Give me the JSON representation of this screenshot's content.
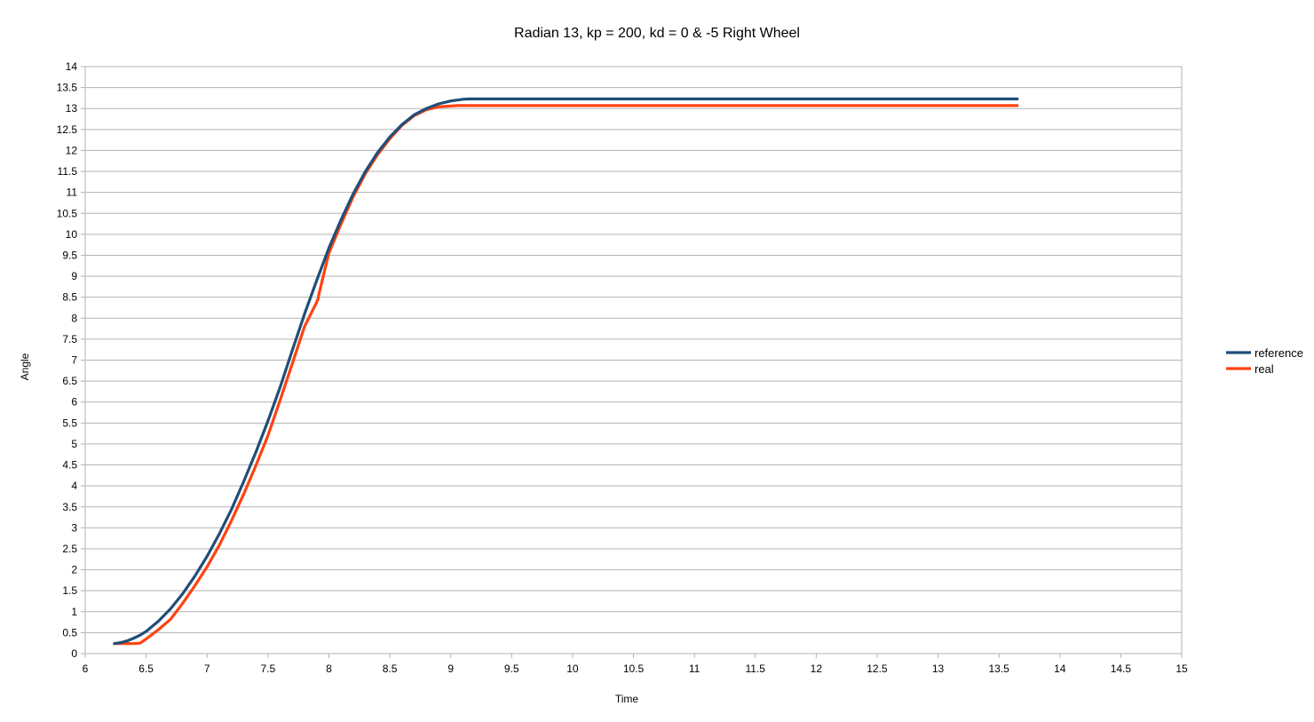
{
  "chart_data": {
    "type": "line",
    "title": "Radian 13, kp = 200, kd = 0 & -5 Right Wheel",
    "xlabel": "Time",
    "ylabel": "Angle",
    "xlim": [
      6,
      15
    ],
    "ylim": [
      0,
      14
    ],
    "x_ticks": [
      "6",
      "6.5",
      "7",
      "7.5",
      "8",
      "8.5",
      "9",
      "9.5",
      "10",
      "10.5",
      "11",
      "11.5",
      "12",
      "12.5",
      "13",
      "13.5",
      "14",
      "14.5",
      "15"
    ],
    "y_ticks": [
      "0",
      "0.5",
      "1",
      "1.5",
      "2",
      "2.5",
      "3",
      "3.5",
      "4",
      "4.5",
      "5",
      "5.5",
      "6",
      "6.5",
      "7",
      "7.5",
      "8",
      "8.5",
      "9",
      "9.5",
      "10",
      "10.5",
      "11",
      "11.5",
      "12",
      "12.5",
      "13",
      "13.5",
      "14"
    ],
    "grid": "horizontal",
    "legend_position": "right",
    "series": [
      {
        "name": "reference",
        "color": "#1f4e79",
        "x": [
          6.24,
          6.3,
          6.35,
          6.4,
          6.45,
          6.5,
          6.6,
          6.7,
          6.8,
          6.9,
          7.0,
          7.1,
          7.2,
          7.3,
          7.4,
          7.5,
          7.6,
          7.7,
          7.8,
          7.9,
          8.0,
          8.1,
          8.2,
          8.3,
          8.4,
          8.5,
          8.6,
          8.7,
          8.8,
          8.9,
          9.0,
          9.1,
          9.15,
          9.5,
          10.0,
          11.0,
          12.0,
          13.0,
          13.65
        ],
        "y": [
          0.24,
          0.27,
          0.31,
          0.37,
          0.44,
          0.53,
          0.77,
          1.07,
          1.43,
          1.85,
          2.32,
          2.85,
          3.44,
          4.1,
          4.8,
          5.55,
          6.36,
          7.24,
          8.1,
          8.9,
          9.67,
          10.35,
          10.97,
          11.5,
          11.95,
          12.32,
          12.62,
          12.85,
          13.0,
          13.11,
          13.18,
          13.22,
          13.23,
          13.23,
          13.23,
          13.23,
          13.23,
          13.23,
          13.23
        ]
      },
      {
        "name": "real",
        "color": "#ff420e",
        "x": [
          6.24,
          6.3,
          6.4,
          6.45,
          6.5,
          6.6,
          6.7,
          6.8,
          6.9,
          7.0,
          7.1,
          7.2,
          7.3,
          7.4,
          7.5,
          7.6,
          7.7,
          7.8,
          7.9,
          7.91,
          7.92,
          8.0,
          8.1,
          8.2,
          8.3,
          8.4,
          8.5,
          8.6,
          8.7,
          8.8,
          8.9,
          9.0,
          9.05,
          9.1,
          9.5,
          10.0,
          11.0,
          12.0,
          13.0,
          13.65
        ],
        "y": [
          0.24,
          0.24,
          0.24,
          0.25,
          0.35,
          0.57,
          0.82,
          1.2,
          1.62,
          2.07,
          2.58,
          3.17,
          3.8,
          4.48,
          5.2,
          6.05,
          6.92,
          7.8,
          8.38,
          8.45,
          8.6,
          9.55,
          10.25,
          10.9,
          11.45,
          11.9,
          12.28,
          12.6,
          12.83,
          12.97,
          13.04,
          13.06,
          13.07,
          13.07,
          13.07,
          13.07,
          13.07,
          13.07,
          13.07,
          13.07
        ]
      }
    ]
  }
}
